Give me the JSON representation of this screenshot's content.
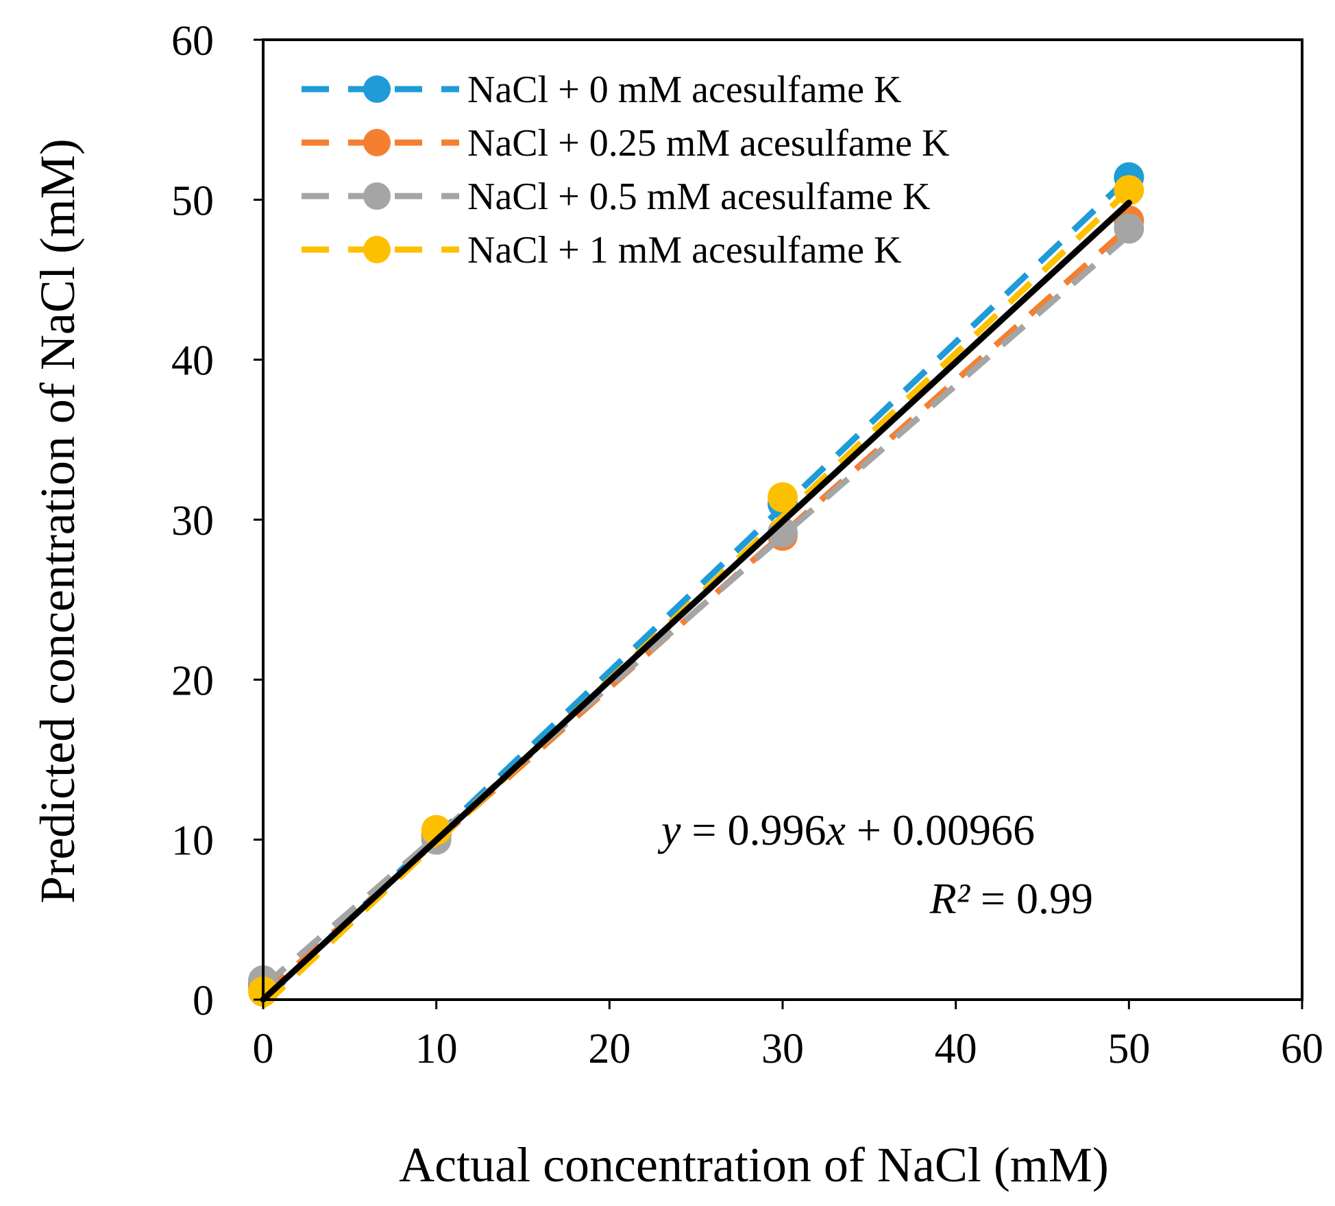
{
  "chart_data": {
    "type": "scatter",
    "xlabel": "Actual concentration of NaCl (mM)",
    "ylabel": "Predicted concentration of NaCl (mM)",
    "xlim": [
      0,
      60
    ],
    "ylim": [
      0,
      60
    ],
    "xticks": [
      "0",
      "10",
      "20",
      "30",
      "40",
      "50",
      "60"
    ],
    "yticks": [
      "0",
      "10",
      "20",
      "30",
      "40",
      "50",
      "60"
    ],
    "grid": false,
    "legend_position": "top-left",
    "x": [
      0,
      10,
      30,
      50
    ],
    "series": [
      {
        "name": "NaCl + 0 mM acesulfame K",
        "color": "#1F9BD7",
        "values": [
          1.0,
          10.3,
          31.0,
          51.4
        ],
        "trendline": {
          "slope": 1.03,
          "intercept": -0.1
        }
      },
      {
        "name": "NaCl + 0.25 mM acesulfame K",
        "color": "#F47F30",
        "values": [
          0.8,
          10.2,
          29.0,
          48.7
        ],
        "trendline": {
          "slope": 0.96,
          "intercept": 0.3
        }
      },
      {
        "name": "NaCl + 0.5 mM acesulfame K",
        "color": "#A5A5A5",
        "values": [
          1.2,
          10.0,
          29.2,
          48.2
        ],
        "trendline": {
          "slope": 0.94,
          "intercept": 0.8
        }
      },
      {
        "name": "NaCl + 1 mM acesulfame K",
        "color": "#FDC000",
        "values": [
          0.5,
          10.6,
          31.4,
          50.6
        ],
        "trendline": {
          "slope": 1.02,
          "intercept": -0.4
        }
      }
    ],
    "fit_line": {
      "slope": 0.996,
      "intercept": 0.00966,
      "x_range": [
        0,
        50
      ],
      "color": "#000000"
    },
    "annotations": {
      "equation_var_y": "y",
      "equation_middle": " = 0.996",
      "equation_var_x": "x",
      "equation_tail": " + 0.00966",
      "r2_var": "R²",
      "r2_tail": " = 0.99"
    }
  }
}
